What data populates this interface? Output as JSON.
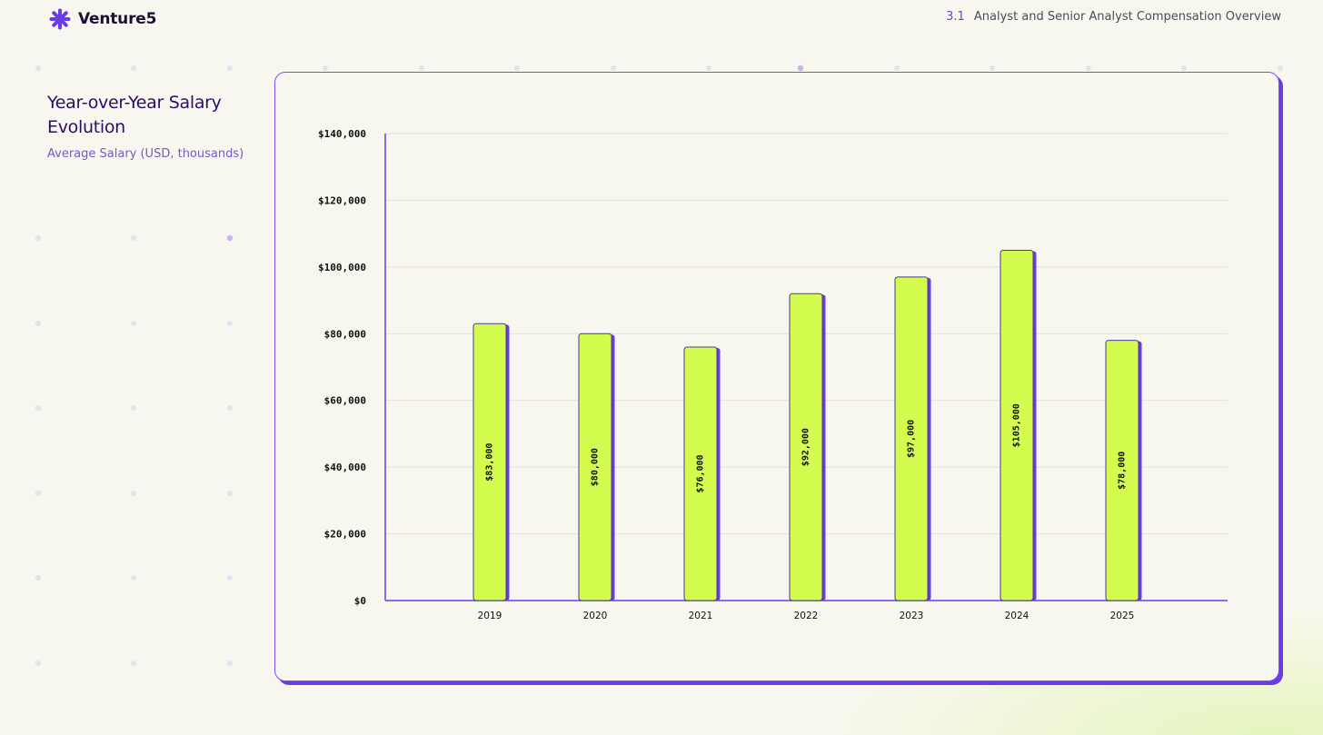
{
  "header": {
    "brand": "Venture5",
    "section_number": "3.1",
    "section_title": "Analyst and Senior Analyst Compensation Overview"
  },
  "sidebar": {
    "title": "Year-over-Year Salary Evolution",
    "subtitle": "Average Salary (USD, thousands)"
  },
  "colors": {
    "accent": "#6b3be8",
    "bar_fill": "#d4fc4f",
    "background": "#f8f7ef",
    "title": "#2d0b6b"
  },
  "chart_data": {
    "type": "bar",
    "categories": [
      "2019",
      "2020",
      "2021",
      "2022",
      "2023",
      "2024",
      "2025"
    ],
    "values": [
      83000,
      80000,
      76000,
      92000,
      97000,
      105000,
      78000
    ],
    "data_labels": [
      "$83,000",
      "$80,000",
      "$76,000",
      "$92,000",
      "$97,000",
      "$105,000",
      "$78,000"
    ],
    "yticks": [
      0,
      20000,
      40000,
      60000,
      80000,
      100000,
      120000,
      140000
    ],
    "ytick_labels": [
      "$0",
      "$20,000",
      "$40,000",
      "$60,000",
      "$80,000",
      "$100,000",
      "$120,000",
      "$140,000"
    ],
    "ylim": [
      0,
      140000
    ],
    "grid": true,
    "legend": "none",
    "xlabel": "",
    "ylabel": ""
  }
}
